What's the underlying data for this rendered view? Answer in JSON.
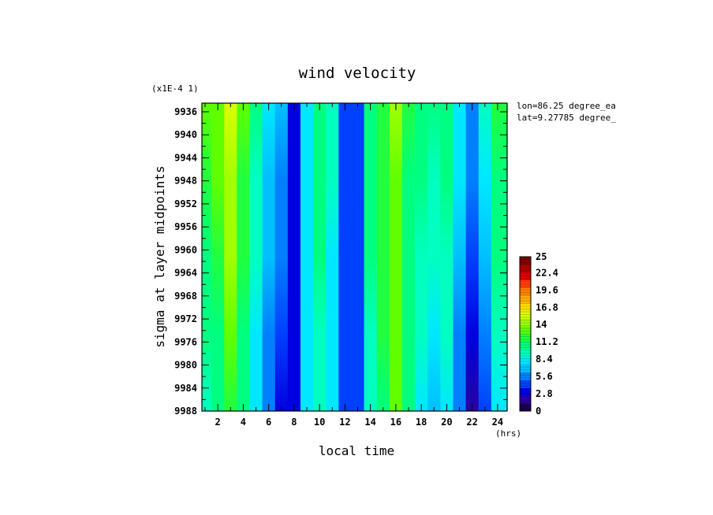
{
  "chart_data": {
    "type": "heatmap",
    "title": "wind velocity",
    "xlabel": "local time",
    "ylabel": "sigma at layer midpoints",
    "x_unit": "(hrs)",
    "y_scale_note": "(x1E-4 1)",
    "annotations": [
      "lon=86.25 degree_ea",
      "lat=9.27785 degree_"
    ],
    "xlim": [
      0.75,
      24.75
    ],
    "ylim": [
      9934.5,
      9988
    ],
    "y_inverted": true,
    "x_ticks": [
      "2",
      "4",
      "6",
      "8",
      "10",
      "12",
      "14",
      "16",
      "18",
      "20",
      "22",
      "24"
    ],
    "y_ticks": [
      "9936",
      "9940",
      "9944",
      "9948",
      "9952",
      "9956",
      "9960",
      "9964",
      "9968",
      "9972",
      "9976",
      "9980",
      "9984",
      "9988"
    ],
    "x": [
      1,
      2,
      3,
      4,
      5,
      6,
      7,
      8,
      9,
      10,
      11,
      12,
      13,
      14,
      15,
      16,
      17,
      18,
      19,
      20,
      21,
      22,
      23,
      24
    ],
    "top_values": [
      12.5,
      13.5,
      15.5,
      12.5,
      10.0,
      8.0,
      6.5,
      3.5,
      8.5,
      10.5,
      9.0,
      4.5,
      4.5,
      10.5,
      12.0,
      14.0,
      11.5,
      10.5,
      11.0,
      10.5,
      8.5,
      6.0,
      9.0,
      12.0
    ],
    "bottom_values": [
      9.5,
      10.0,
      12.0,
      10.5,
      8.0,
      5.5,
      3.5,
      3.5,
      8.5,
      9.5,
      8.0,
      4.0,
      4.5,
      9.5,
      11.0,
      12.5,
      10.0,
      8.5,
      6.5,
      8.5,
      5.0,
      2.0,
      4.0,
      8.0
    ],
    "colorbar": {
      "min": 0,
      "max": 25,
      "tick_labels": [
        "0",
        "2.8",
        "5.6",
        "8.4",
        "11.2",
        "14",
        "16.8",
        "19.6",
        "22.4",
        "25"
      ],
      "colors": [
        "#1a004d",
        "#2a00a0",
        "#0000e0",
        "#0040ff",
        "#0080ff",
        "#00c0ff",
        "#00e8ff",
        "#00ffc0",
        "#00ff80",
        "#20ff40",
        "#60ff00",
        "#a0ff00",
        "#d8ff00",
        "#ffe000",
        "#ffb000",
        "#ff8000",
        "#ff4000",
        "#e00000",
        "#b00000",
        "#800000"
      ]
    }
  }
}
